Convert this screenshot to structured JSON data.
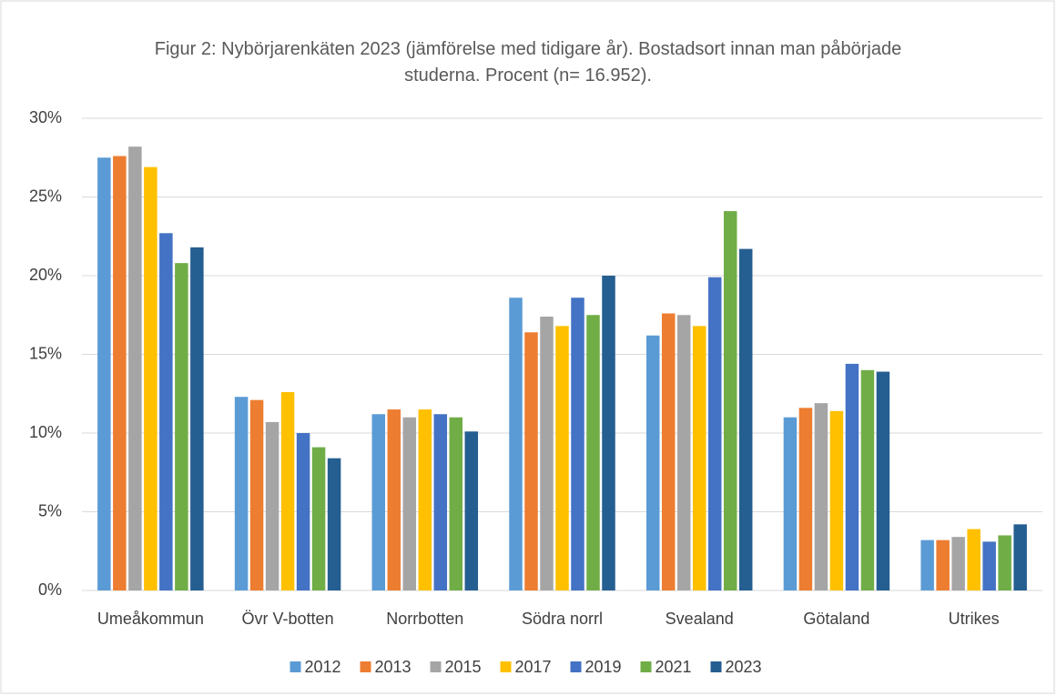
{
  "chart_data": {
    "type": "bar",
    "title": "Figur 2: Nybörjarenkäten 2023 (jämförelse med tidigare år). Bostadsort innan man påbörjade studerna. Procent (n= 16.952).",
    "categories": [
      "Umeåkommun",
      "Övr V-botten",
      "Norrbotten",
      "Södra norrl",
      "Svealand",
      "Götaland",
      "Utrikes"
    ],
    "series": [
      {
        "name": "2012",
        "color": "#5b9bd5",
        "values": [
          27.5,
          12.3,
          11.2,
          18.6,
          16.2,
          11.0,
          3.2
        ]
      },
      {
        "name": "2013",
        "color": "#ed7d31",
        "values": [
          27.6,
          12.1,
          11.5,
          16.4,
          17.6,
          11.6,
          3.2
        ]
      },
      {
        "name": "2015",
        "color": "#a5a5a5",
        "values": [
          28.2,
          10.7,
          11.0,
          17.4,
          17.5,
          11.9,
          3.4
        ]
      },
      {
        "name": "2017",
        "color": "#ffc000",
        "values": [
          26.9,
          12.6,
          11.5,
          16.8,
          16.8,
          11.4,
          3.9
        ]
      },
      {
        "name": "2019",
        "color": "#4472c4",
        "values": [
          22.7,
          10.0,
          11.2,
          18.6,
          19.9,
          14.4,
          3.1
        ]
      },
      {
        "name": "2021",
        "color": "#70ad47",
        "values": [
          20.8,
          9.1,
          11.0,
          17.5,
          24.1,
          14.0,
          3.5
        ]
      },
      {
        "name": "2023",
        "color": "#255e91",
        "values": [
          21.8,
          8.4,
          10.1,
          20.0,
          21.7,
          13.9,
          4.2
        ]
      }
    ],
    "ylim": [
      0,
      30
    ],
    "yticks": [
      {
        "value": 0,
        "label": "0%"
      },
      {
        "value": 5,
        "label": "5%"
      },
      {
        "value": 10,
        "label": "10%"
      },
      {
        "value": 15,
        "label": "15%"
      },
      {
        "value": 20,
        "label": "20%"
      },
      {
        "value": 25,
        "label": "25%"
      },
      {
        "value": 30,
        "label": "30%"
      }
    ],
    "grid": true,
    "legend": "bottom"
  }
}
